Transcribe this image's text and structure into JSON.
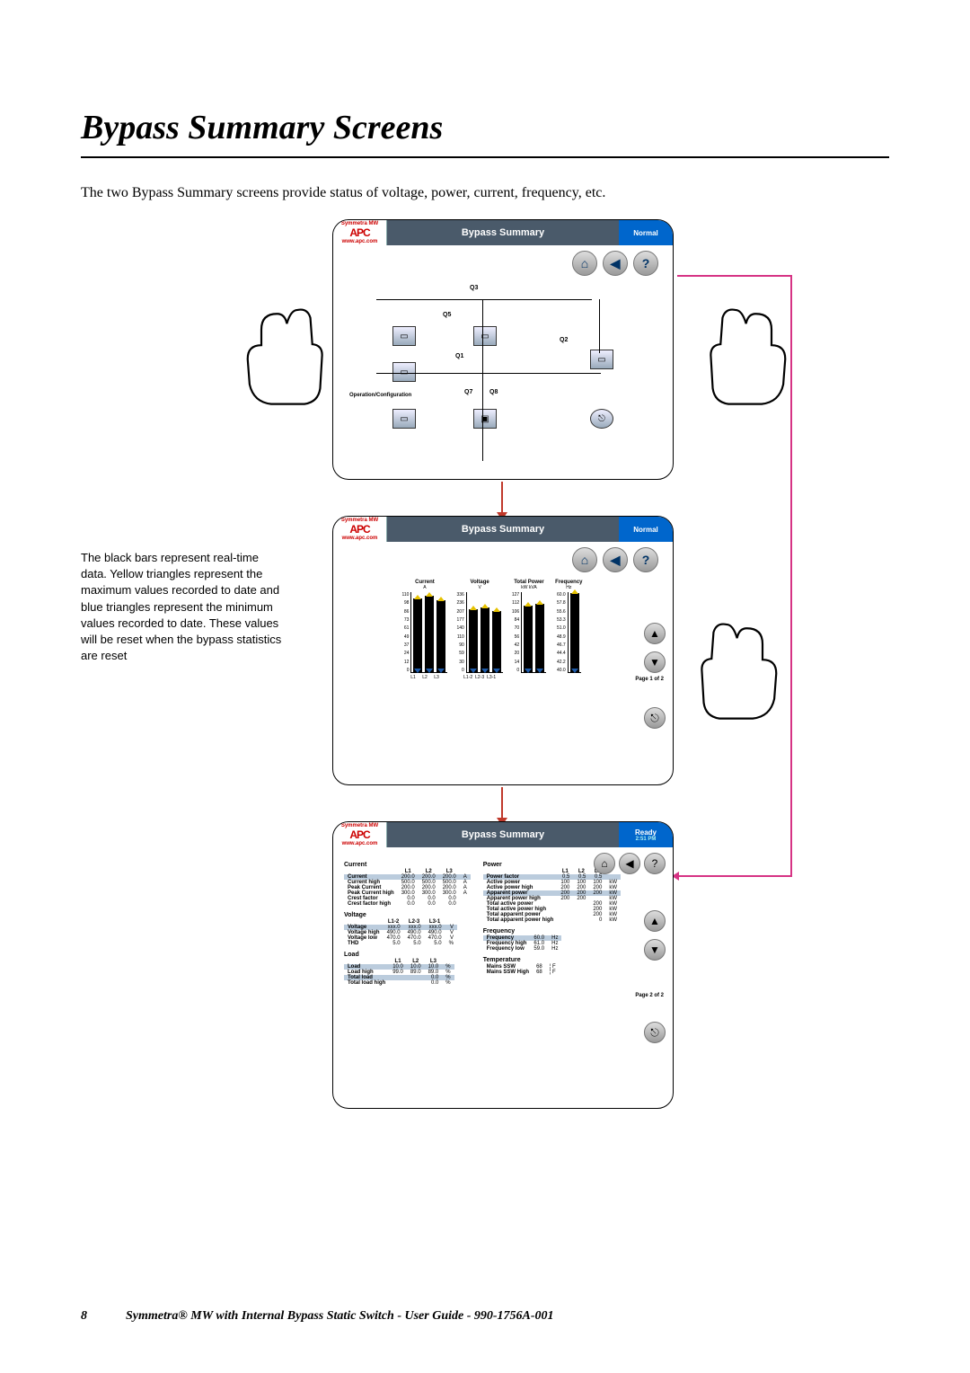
{
  "page": {
    "title": "Bypass Summary Screens",
    "intro": "The two Bypass Summary screens provide status of voltage, power, current, frequency, etc.",
    "sidebar": "The black bars represent real-time data. Yellow triangles represent the maximum values recorded to date and blue triangles represent the minimum values recorded to date. These values will be reset when the bypass statistics are reset",
    "footer_page": "8",
    "footer_text": "Symmetra® MW with Internal Bypass Static Switch - User Guide - 990-1756A-001"
  },
  "screens": {
    "header_model": "Symmetra MW",
    "header_logo": "APC",
    "header_logo_url": "www.apc.com",
    "title": "Bypass Summary",
    "status_normal": "Normal",
    "status_ready": "Ready",
    "time": "2:51 PM"
  },
  "screen1": {
    "nodes": [
      "Q1",
      "Q2",
      "Q3",
      "Q5",
      "Q7",
      "Q8"
    ],
    "opconf": "Operation/Configuration"
  },
  "screen2": {
    "charts": [
      {
        "title": "Current",
        "sub": "A",
        "ticks": [
          "110",
          "98",
          "86",
          "73",
          "61",
          "49",
          "37",
          "24",
          "12",
          "0"
        ],
        "bars": [
          82,
          85,
          80
        ],
        "xlabels": [
          "L1",
          "L2",
          "L3"
        ]
      },
      {
        "title": "Voltage",
        "sub": "V",
        "ticks": [
          "336",
          "236",
          "207",
          "177",
          "140",
          "110",
          "90",
          "59",
          "30",
          "0"
        ],
        "bars": [
          70,
          72,
          68
        ],
        "xlabels": [
          "L1-2",
          "L2-3",
          "L3-1"
        ]
      },
      {
        "title": "Total Power",
        "sub": "kW kVA",
        "ticks": [
          "127",
          "112",
          "106",
          "84",
          "70",
          "56",
          "42",
          "20",
          "14",
          "0"
        ],
        "bars": [
          74,
          76
        ],
        "xlabels": [
          "",
          ""
        ]
      },
      {
        "title": "Frequency",
        "sub": "Hz",
        "ticks": [
          "60.0",
          "57.8",
          "55.6",
          "53.3",
          "51.0",
          "48.9",
          "46.7",
          "44.4",
          "42.2",
          "40.0"
        ],
        "bars": [
          88
        ],
        "xlabels": [
          ""
        ]
      }
    ],
    "pagefoot": "Page 1 of 2"
  },
  "screen3": {
    "current": {
      "label": "Current",
      "cols": [
        "L1",
        "L2",
        "L3",
        ""
      ],
      "rows": [
        {
          "k": "Current",
          "v": [
            "200.0",
            "200.0",
            "200.0",
            "A"
          ],
          "hl": true
        },
        {
          "k": "Current high",
          "v": [
            "500.0",
            "500.0",
            "500.0",
            "A"
          ]
        },
        {
          "k": "Peak Current",
          "v": [
            "200.0",
            "200.0",
            "200.0",
            "A"
          ]
        },
        {
          "k": "Peak Current high",
          "v": [
            "300.0",
            "300.0",
            "300.0",
            "A"
          ]
        },
        {
          "k": "Crest factor",
          "v": [
            "0.0",
            "0.0",
            "0.0",
            ""
          ]
        },
        {
          "k": "Crest factor high",
          "v": [
            "0.0",
            "0.0",
            "0.0",
            ""
          ]
        }
      ]
    },
    "voltage": {
      "label": "Voltage",
      "cols": [
        "L1-2",
        "L2-3",
        "L3-1",
        ""
      ],
      "rows": [
        {
          "k": "Voltage",
          "v": [
            "xxx.0",
            "xxx.0",
            "xxx.0",
            "V"
          ],
          "hl": true
        },
        {
          "k": "Voltage high",
          "v": [
            "490.0",
            "490.0",
            "490.0",
            "V"
          ]
        },
        {
          "k": "Voltage low",
          "v": [
            "470.0",
            "470.0",
            "470.0",
            "V"
          ]
        },
        {
          "k": "THD",
          "v": [
            "5.0",
            "5.0",
            "5.0",
            "%"
          ]
        }
      ]
    },
    "load": {
      "label": "Load",
      "cols": [
        "L1",
        "L2",
        "L3",
        ""
      ],
      "rows": [
        {
          "k": "Load",
          "v": [
            "10.0",
            "10.0",
            "10.0",
            "%"
          ],
          "hl": true
        },
        {
          "k": "Load high",
          "v": [
            "99.0",
            "89.0",
            "89.0",
            "%"
          ]
        },
        {
          "k": "Total load",
          "v": [
            "",
            "",
            "0.0",
            "%"
          ],
          "hl": true
        },
        {
          "k": "Total load high",
          "v": [
            "",
            "",
            "0.0",
            "%"
          ]
        }
      ]
    },
    "power": {
      "label": "Power",
      "cols": [
        "L1",
        "L2",
        "L3",
        ""
      ],
      "rows": [
        {
          "k": "Power factor",
          "v": [
            "0.5",
            "0.5",
            "0.5",
            ""
          ],
          "hl": true
        },
        {
          "k": "Active power",
          "v": [
            "100",
            "100",
            "100",
            "kW"
          ]
        },
        {
          "k": "Active power high",
          "v": [
            "200",
            "200",
            "200",
            "kW"
          ]
        },
        {
          "k": "Apparent power",
          "v": [
            "200",
            "200",
            "200",
            "kW"
          ],
          "hl": true
        },
        {
          "k": "Apparent power high",
          "v": [
            "200",
            "200",
            "",
            "kW"
          ]
        },
        {
          "k": "Total active power",
          "v": [
            "",
            "",
            "200",
            "kW"
          ]
        },
        {
          "k": "Total active power high",
          "v": [
            "",
            "",
            "200",
            "kW"
          ]
        },
        {
          "k": "Total apparent power",
          "v": [
            "",
            "",
            "200",
            "kW"
          ]
        },
        {
          "k": "Total apparent power high",
          "v": [
            "",
            "",
            "0",
            "kW"
          ]
        }
      ]
    },
    "frequency": {
      "label": "Frequency",
      "rows": [
        {
          "k": "Frequency",
          "v": [
            "60.0",
            "Hz"
          ],
          "hl": true
        },
        {
          "k": "Frequency high",
          "v": [
            "61.0",
            "Hz"
          ]
        },
        {
          "k": "Frequency low",
          "v": [
            "59.0",
            "Hz"
          ]
        }
      ]
    },
    "temperature": {
      "label": "Temperature",
      "rows": [
        {
          "k": "Mains SSW",
          "v": [
            "68",
            "¦ F"
          ]
        },
        {
          "k": "Mains SSW High",
          "v": [
            "68",
            "¦ F"
          ]
        }
      ]
    },
    "pagefoot": "Page 2 of 2"
  }
}
